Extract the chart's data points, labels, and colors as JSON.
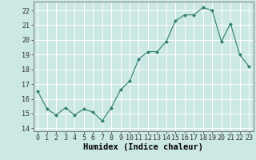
{
  "x": [
    0,
    1,
    2,
    3,
    4,
    5,
    6,
    7,
    8,
    9,
    10,
    11,
    12,
    13,
    14,
    15,
    16,
    17,
    18,
    19,
    20,
    21,
    22,
    23
  ],
  "y": [
    16.5,
    15.3,
    14.9,
    15.4,
    14.9,
    15.3,
    15.1,
    14.5,
    15.4,
    16.6,
    17.2,
    18.7,
    19.2,
    19.2,
    19.9,
    21.3,
    21.7,
    21.7,
    22.2,
    22.0,
    19.9,
    21.1,
    19.0,
    18.2
  ],
  "xlabel": "Humidex (Indice chaleur)",
  "ylim": [
    13.8,
    22.6
  ],
  "xlim": [
    -0.5,
    23.5
  ],
  "yticks": [
    14,
    15,
    16,
    17,
    18,
    19,
    20,
    21,
    22
  ],
  "xticks": [
    0,
    1,
    2,
    3,
    4,
    5,
    6,
    7,
    8,
    9,
    10,
    11,
    12,
    13,
    14,
    15,
    16,
    17,
    18,
    19,
    20,
    21,
    22,
    23
  ],
  "line_color": "#2e7d6e",
  "marker": "D",
  "marker_size": 2.0,
  "bg_color": "#cce8e4",
  "grid_color": "#ffffff",
  "tick_label_fontsize": 6.0,
  "xlabel_fontsize": 7.5
}
